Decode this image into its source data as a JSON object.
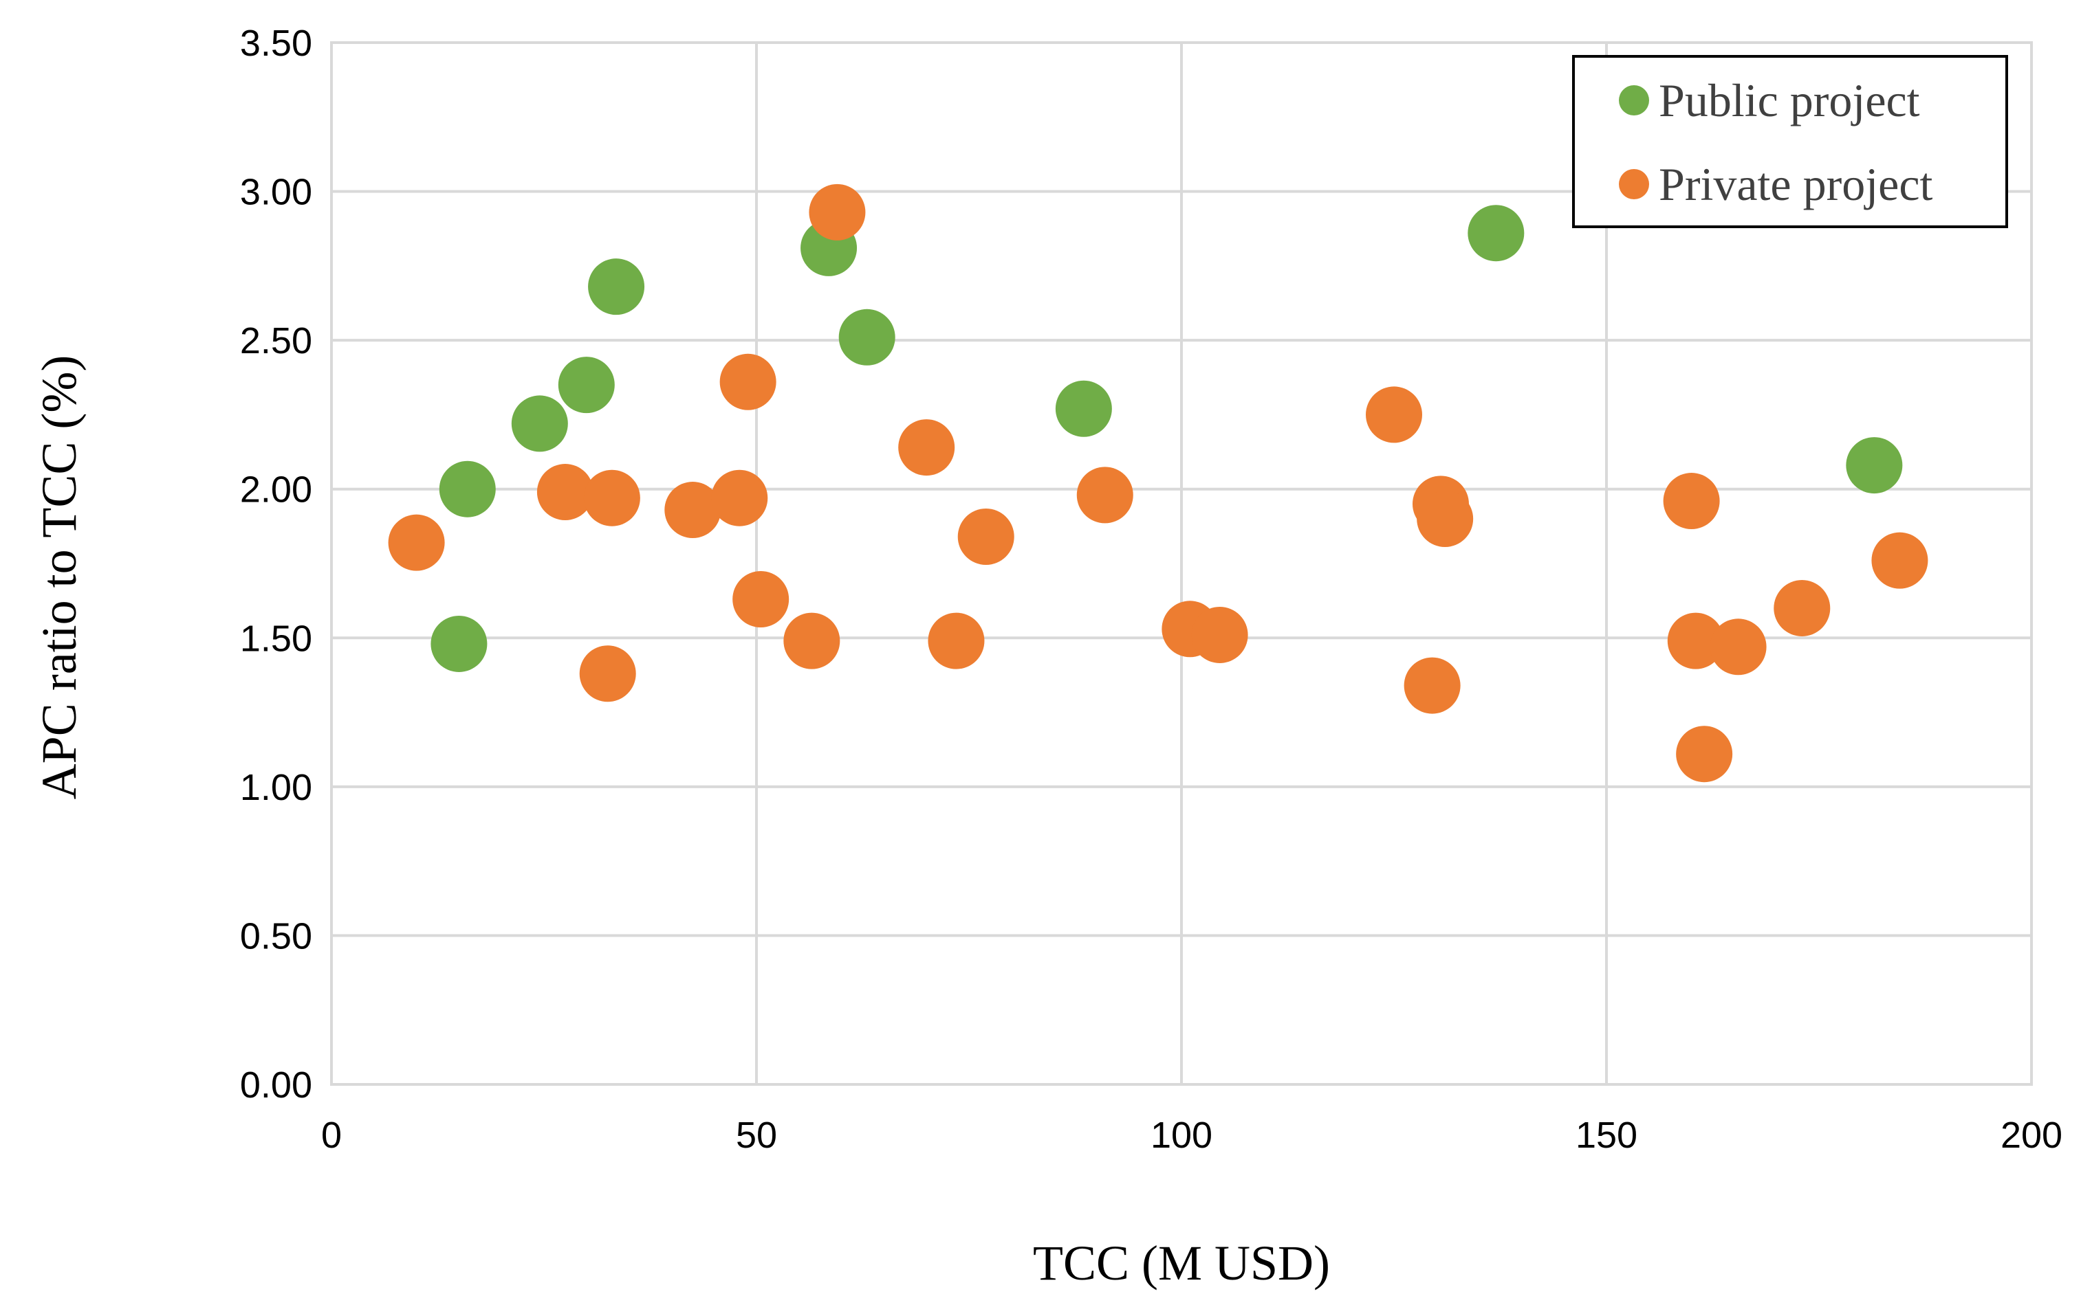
{
  "chart_data": {
    "type": "scatter",
    "title": "",
    "xlabel": "TCC (M USD)",
    "ylabel": "APC ratio to TCC (%)",
    "xlim": [
      0,
      200
    ],
    "ylim": [
      0,
      3.5
    ],
    "xticks": [
      0,
      50,
      100,
      150,
      200
    ],
    "xtick_labels": [
      "0",
      "50",
      "100",
      "150",
      "200"
    ],
    "yticks": [
      0,
      0.5,
      1,
      1.5,
      2,
      2.5,
      3,
      3.5
    ],
    "ytick_labels": [
      "0.00",
      "0.50",
      "1.00",
      "1.50",
      "2.00",
      "2.50",
      "3.00",
      "3.50"
    ],
    "grid": true,
    "legend_position": "top-right",
    "series": [
      {
        "name": "Public project",
        "color": "#70ad47",
        "points": [
          {
            "x": 15.0,
            "y": 1.48
          },
          {
            "x": 16.0,
            "y": 2.0
          },
          {
            "x": 24.5,
            "y": 2.22
          },
          {
            "x": 30.0,
            "y": 2.35
          },
          {
            "x": 33.5,
            "y": 2.68
          },
          {
            "x": 58.5,
            "y": 2.81
          },
          {
            "x": 63.0,
            "y": 2.51
          },
          {
            "x": 88.5,
            "y": 2.27
          },
          {
            "x": 137.0,
            "y": 2.86
          },
          {
            "x": 181.5,
            "y": 2.08
          }
        ]
      },
      {
        "name": "Private project",
        "color": "#ed7d31",
        "points": [
          {
            "x": 10.0,
            "y": 1.82
          },
          {
            "x": 27.5,
            "y": 1.99
          },
          {
            "x": 32.5,
            "y": 1.38
          },
          {
            "x": 33.0,
            "y": 1.97
          },
          {
            "x": 42.5,
            "y": 1.93
          },
          {
            "x": 48.0,
            "y": 1.97
          },
          {
            "x": 49.0,
            "y": 2.36
          },
          {
            "x": 50.5,
            "y": 1.63
          },
          {
            "x": 56.5,
            "y": 1.49
          },
          {
            "x": 59.5,
            "y": 2.93
          },
          {
            "x": 70.0,
            "y": 2.14
          },
          {
            "x": 73.5,
            "y": 1.49
          },
          {
            "x": 77.0,
            "y": 1.84
          },
          {
            "x": 91.0,
            "y": 1.98
          },
          {
            "x": 101.0,
            "y": 1.53
          },
          {
            "x": 104.5,
            "y": 1.51
          },
          {
            "x": 125.0,
            "y": 2.25
          },
          {
            "x": 129.5,
            "y": 1.34
          },
          {
            "x": 130.5,
            "y": 1.95
          },
          {
            "x": 131.0,
            "y": 1.9
          },
          {
            "x": 160.0,
            "y": 1.96
          },
          {
            "x": 160.5,
            "y": 1.49
          },
          {
            "x": 161.5,
            "y": 1.11
          },
          {
            "x": 165.5,
            "y": 1.47
          },
          {
            "x": 173.0,
            "y": 1.6
          },
          {
            "x": 184.5,
            "y": 1.76
          }
        ]
      }
    ]
  }
}
